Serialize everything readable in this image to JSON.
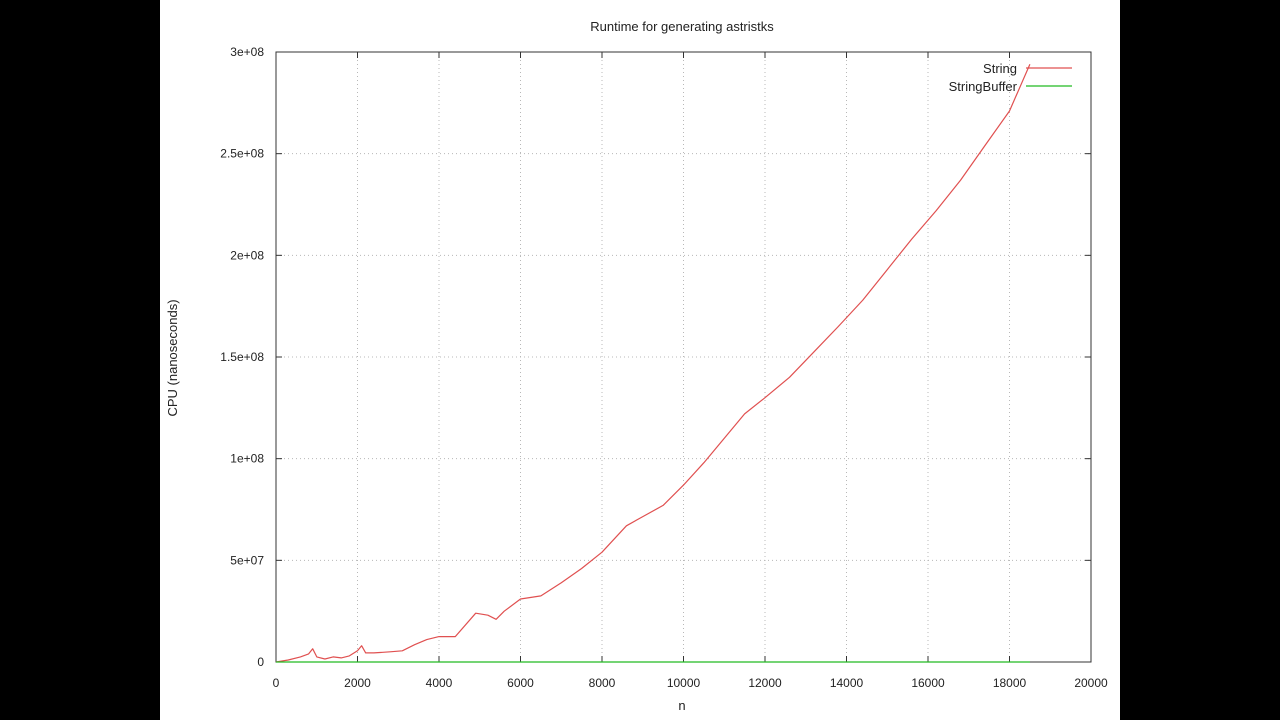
{
  "colors": {
    "background": "#000000",
    "plot_background": "#ffffff",
    "string_series": "#e05050",
    "stringbuffer_series": "#22bb22",
    "axis": "#333333"
  },
  "chart_data": {
    "type": "line",
    "title": "Runtime for generating  astristks",
    "xlabel": "n",
    "ylabel": "CPU (nanoseconds)",
    "xlim": [
      0,
      20000
    ],
    "ylim": [
      0,
      300000000
    ],
    "xticks": [
      0,
      2000,
      4000,
      6000,
      8000,
      10000,
      12000,
      14000,
      16000,
      18000,
      20000
    ],
    "xtick_labels": [
      "0",
      "2000",
      "4000",
      "6000",
      "8000",
      "10000",
      "12000",
      "14000",
      "16000",
      "18000",
      "20000"
    ],
    "yticks": [
      0,
      50000000,
      100000000,
      150000000,
      200000000,
      250000000,
      300000000
    ],
    "ytick_labels": [
      "0",
      "5e+07",
      "1e+08",
      "1.5e+08",
      "2e+08",
      "2.5e+08",
      "3e+08"
    ],
    "grid": true,
    "legend_position": "top-right",
    "series": [
      {
        "name": "String",
        "x": [
          0,
          300,
          600,
          800,
          900,
          1000,
          1200,
          1400,
          1600,
          1800,
          2000,
          2100,
          2200,
          2400,
          2800,
          3100,
          3400,
          3700,
          4000,
          4400,
          4900,
          5200,
          5400,
          5600,
          6000,
          6500,
          7000,
          7500,
          8000,
          8600,
          9000,
          9500,
          10000,
          10500,
          11000,
          11500,
          12000,
          12600,
          13200,
          13800,
          14400,
          15000,
          15600,
          16200,
          16800,
          17400,
          18000,
          18500
        ],
        "y": [
          0,
          1000000,
          2500000,
          4000000,
          6500000,
          2500000,
          1500000,
          2500000,
          2000000,
          3000000,
          5500000,
          8000000,
          4500000,
          4500000,
          5000000,
          5500000,
          8500000,
          11000000,
          12500000,
          12500000,
          24000000,
          23000000,
          21000000,
          25000000,
          31000000,
          32500000,
          39000000,
          46000000,
          54000000,
          67000000,
          71500000,
          77000000,
          87000000,
          98000000,
          110000000,
          122000000,
          130000000,
          140000000,
          152500000,
          165000000,
          178000000,
          193000000,
          208000000,
          222000000,
          237000000,
          254000000,
          271000000,
          294000000
        ]
      },
      {
        "name": "StringBuffer",
        "x": [
          0,
          2000,
          4000,
          6000,
          8000,
          10000,
          12000,
          14000,
          16000,
          18000,
          18500
        ],
        "y": [
          0,
          0,
          0,
          0,
          0,
          0,
          0,
          0,
          0,
          0,
          0
        ]
      }
    ]
  }
}
